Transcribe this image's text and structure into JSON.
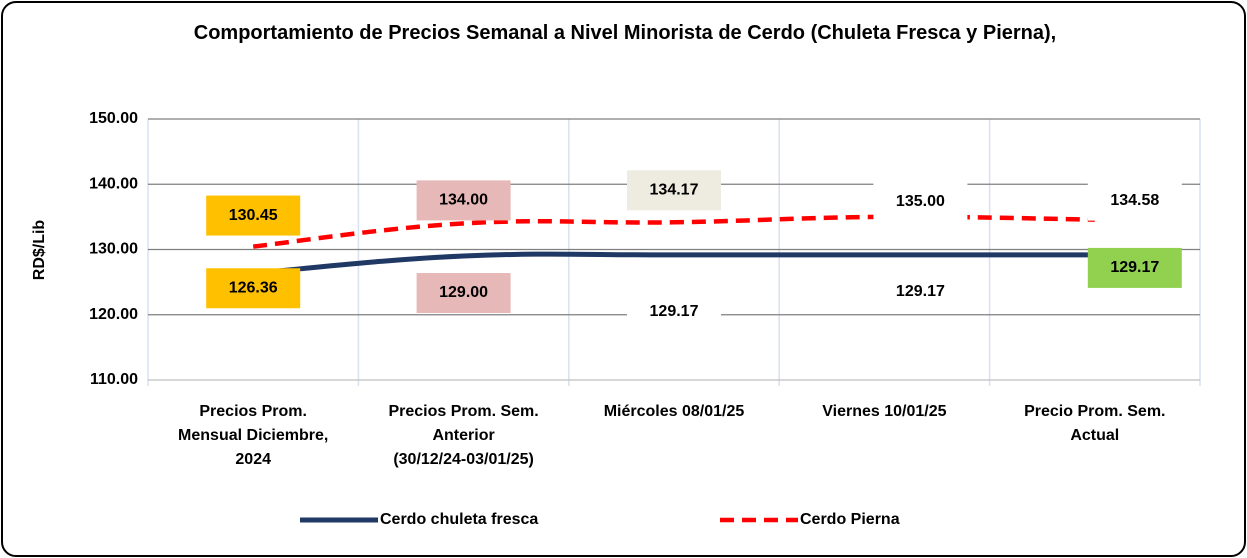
{
  "chart_data": {
    "type": "line",
    "title": "Comportamiento de Precios Semanal a Nivel Minorista de Cerdo (Chuleta Fresca y Pierna),",
    "y_label": "RD$/Lib",
    "categories": [
      "Precios Prom.\nMensual Diciembre,\n2024",
      "Precios Prom. Sem.\nAnterior\n(30/12/24-03/01/25)",
      "Miércoles 08/01/25",
      "Viernes 10/01/25",
      "Precio Prom. Sem.\nActual"
    ],
    "series": [
      {
        "name": "Cerdo chuleta fresca",
        "color": "#1f3864",
        "dash": false,
        "values": [
          126.36,
          129.0,
          129.17,
          129.17,
          129.17
        ],
        "value_labels": [
          "126.36",
          "129.00",
          "129.17",
          "129.17",
          "129.17"
        ],
        "label_backgrounds": [
          "#ffc000",
          "#e6b8b7",
          "#ffffff",
          "#ffffff",
          "#92d050"
        ]
      },
      {
        "name": "Cerdo Pierna",
        "color": "#ff0000",
        "dash": true,
        "values": [
          130.45,
          134.0,
          134.17,
          135.0,
          134.58
        ],
        "value_labels": [
          "130.45",
          "134.00",
          "134.17",
          "135.00",
          "134.58"
        ],
        "label_backgrounds": [
          "#ffc000",
          "#e6b8b7",
          "#eeece1",
          "#ffffff",
          "#ffffff"
        ]
      }
    ],
    "ylim": [
      110,
      150
    ],
    "yticks": [
      {
        "value": 110,
        "label": "110.00"
      },
      {
        "value": 120,
        "label": "120.00"
      },
      {
        "value": 130,
        "label": "130.00"
      },
      {
        "value": 140,
        "label": "140.00"
      },
      {
        "value": 150,
        "label": "150.00"
      }
    ],
    "grid": true,
    "legend": "bottom"
  }
}
